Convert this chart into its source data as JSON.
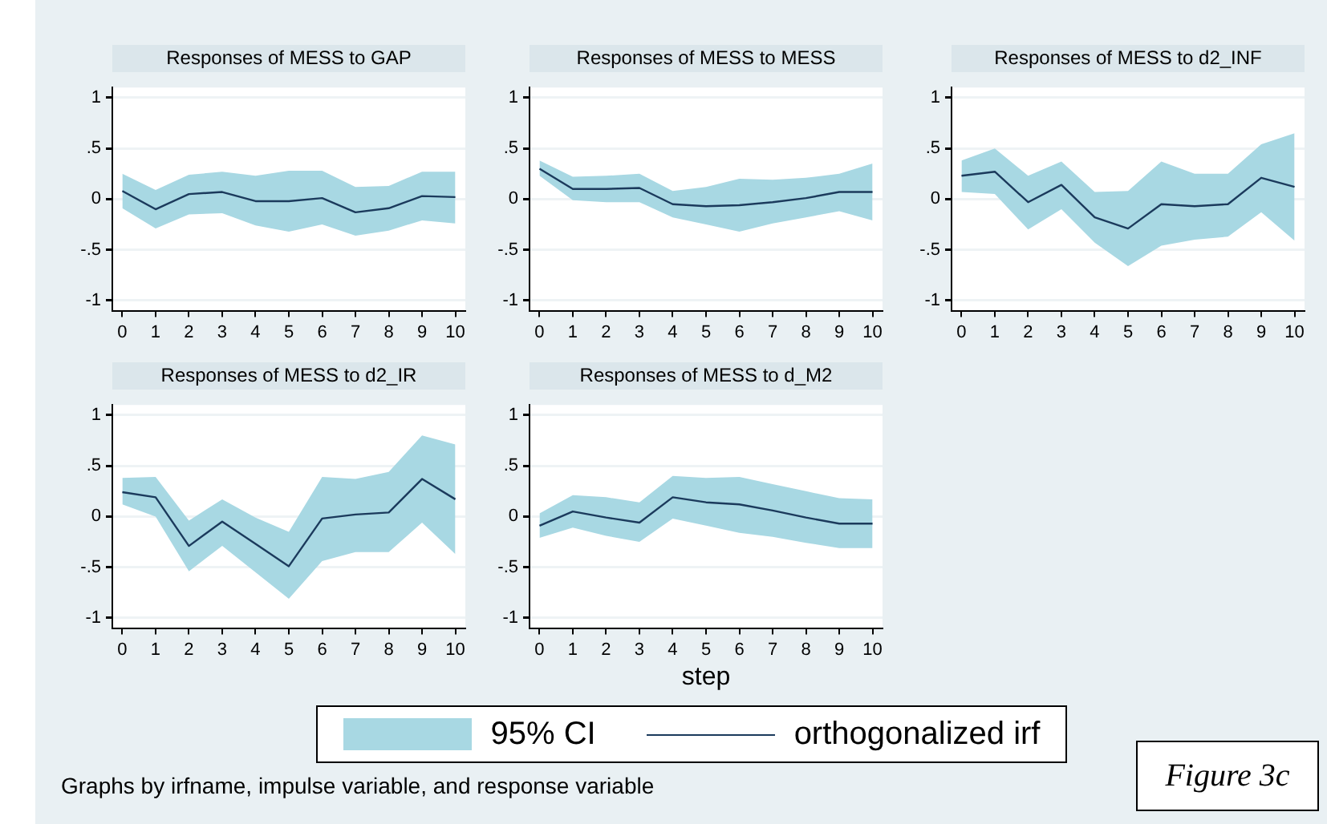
{
  "chart_data": [
    {
      "type": "line",
      "title": "Responses of MESS to GAP",
      "x": [
        0,
        1,
        2,
        3,
        4,
        5,
        6,
        7,
        8,
        9,
        10
      ],
      "xlim": [
        -0.3,
        10.3
      ],
      "xticks": [
        0,
        1,
        2,
        3,
        4,
        5,
        6,
        7,
        8,
        9,
        10
      ],
      "ylim": [
        -1.1,
        1.1
      ],
      "yticks": [
        {
          "value": -1,
          "label": "-1"
        },
        {
          "value": -0.5,
          "label": "-.5"
        },
        {
          "value": 0,
          "label": "0"
        },
        {
          "value": 0.5,
          "label": ".5"
        },
        {
          "value": 1,
          "label": "1"
        }
      ],
      "grid": "y",
      "legend": "bottom",
      "annotations": [
        "95% CI",
        "Graphs by irfname, impulse variable, and response variable",
        "Figure 3c"
      ],
      "series": [
        {
          "name": "orthogonalized irf",
          "color": "#1b3a5c",
          "values": [
            0.08,
            -0.1,
            0.05,
            0.07,
            -0.02,
            -0.02,
            0.01,
            -0.13,
            -0.09,
            0.03,
            0.02
          ],
          "lower": [
            -0.09,
            -0.29,
            -0.15,
            -0.14,
            -0.26,
            -0.32,
            -0.25,
            -0.36,
            -0.31,
            -0.21,
            -0.24
          ],
          "upper": [
            0.25,
            0.09,
            0.24,
            0.27,
            0.23,
            0.28,
            0.28,
            0.12,
            0.13,
            0.27,
            0.27
          ]
        }
      ]
    },
    {
      "type": "line",
      "title": "Responses of MESS to MESS",
      "x": [
        0,
        1,
        2,
        3,
        4,
        5,
        6,
        7,
        8,
        9,
        10
      ],
      "xlim": [
        -0.3,
        10.3
      ],
      "xticks": [
        0,
        1,
        2,
        3,
        4,
        5,
        6,
        7,
        8,
        9,
        10
      ],
      "ylim": [
        -1.1,
        1.1
      ],
      "yticks": [
        {
          "value": -1,
          "label": "-1"
        },
        {
          "value": -0.5,
          "label": "-.5"
        },
        {
          "value": 0,
          "label": "0"
        },
        {
          "value": 0.5,
          "label": ".5"
        },
        {
          "value": 1,
          "label": "1"
        }
      ],
      "grid": "y",
      "series": [
        {
          "color": "#1b3a5c",
          "values": [
            0.3,
            0.1,
            0.1,
            0.11,
            -0.05,
            -0.07,
            -0.06,
            -0.03,
            0.01,
            0.07,
            0.07
          ],
          "lower": [
            0.23,
            -0.01,
            -0.03,
            -0.03,
            -0.18,
            -0.25,
            -0.32,
            -0.24,
            -0.18,
            -0.12,
            -0.21
          ],
          "upper": [
            0.38,
            0.22,
            0.23,
            0.25,
            0.08,
            0.12,
            0.2,
            0.19,
            0.21,
            0.25,
            0.35
          ]
        }
      ]
    },
    {
      "type": "line",
      "title": "Responses of MESS to d2_INF",
      "x": [
        0,
        1,
        2,
        3,
        4,
        5,
        6,
        7,
        8,
        9,
        10
      ],
      "xlim": [
        -0.3,
        10.3
      ],
      "xticks": [
        0,
        1,
        2,
        3,
        4,
        5,
        6,
        7,
        8,
        9,
        10
      ],
      "ylim": [
        -1.1,
        1.1
      ],
      "yticks": [
        {
          "value": -1,
          "label": "-1"
        },
        {
          "value": -0.5,
          "label": "-.5"
        },
        {
          "value": 0,
          "label": "0"
        },
        {
          "value": 0.5,
          "label": ".5"
        },
        {
          "value": 1,
          "label": "1"
        }
      ],
      "grid": "y",
      "series": [
        {
          "color": "#1b3a5c",
          "values": [
            0.23,
            0.27,
            -0.03,
            0.14,
            -0.18,
            -0.29,
            -0.05,
            -0.07,
            -0.05,
            0.21,
            0.12
          ],
          "lower": [
            0.07,
            0.05,
            -0.3,
            -0.1,
            -0.43,
            -0.66,
            -0.46,
            -0.4,
            -0.37,
            -0.13,
            -0.41
          ],
          "upper": [
            0.38,
            0.5,
            0.23,
            0.37,
            0.07,
            0.08,
            0.37,
            0.25,
            0.25,
            0.54,
            0.65
          ]
        }
      ]
    },
    {
      "type": "line",
      "title": "Responses of MESS to d2_IR",
      "x": [
        0,
        1,
        2,
        3,
        4,
        5,
        6,
        7,
        8,
        9,
        10
      ],
      "xlim": [
        -0.3,
        10.3
      ],
      "xticks": [
        0,
        1,
        2,
        3,
        4,
        5,
        6,
        7,
        8,
        9,
        10
      ],
      "ylim": [
        -1.1,
        1.1
      ],
      "yticks": [
        {
          "value": -1,
          "label": "-1"
        },
        {
          "value": -0.5,
          "label": "-.5"
        },
        {
          "value": 0,
          "label": "0"
        },
        {
          "value": 0.5,
          "label": ".5"
        },
        {
          "value": 1,
          "label": "1"
        }
      ],
      "grid": "y",
      "series": [
        {
          "color": "#1b3a5c",
          "values": [
            0.24,
            0.19,
            -0.29,
            -0.05,
            -0.27,
            -0.49,
            -0.02,
            0.02,
            0.04,
            0.37,
            0.17
          ],
          "lower": [
            0.12,
            0.0,
            -0.54,
            -0.29,
            -0.55,
            -0.81,
            -0.44,
            -0.35,
            -0.35,
            -0.06,
            -0.37
          ],
          "upper": [
            0.38,
            0.39,
            -0.04,
            0.17,
            -0.01,
            -0.15,
            0.39,
            0.37,
            0.44,
            0.8,
            0.71
          ]
        }
      ]
    },
    {
      "type": "line",
      "title": "Responses of MESS to d_M2",
      "xlabel": "step",
      "x": [
        0,
        1,
        2,
        3,
        4,
        5,
        6,
        7,
        8,
        9,
        10
      ],
      "xlim": [
        -0.3,
        10.3
      ],
      "xticks": [
        0,
        1,
        2,
        3,
        4,
        5,
        6,
        7,
        8,
        9,
        10
      ],
      "ylim": [
        -1.1,
        1.1
      ],
      "yticks": [
        {
          "value": -1,
          "label": "-1"
        },
        {
          "value": -0.5,
          "label": "-.5"
        },
        {
          "value": 0,
          "label": "0"
        },
        {
          "value": 0.5,
          "label": ".5"
        },
        {
          "value": 1,
          "label": "1"
        }
      ],
      "grid": "y",
      "series": [
        {
          "color": "#1b3a5c",
          "values": [
            -0.09,
            0.05,
            -0.01,
            -0.06,
            0.19,
            0.14,
            0.12,
            0.06,
            -0.01,
            -0.07,
            -0.07
          ],
          "lower": [
            -0.21,
            -0.11,
            -0.19,
            -0.25,
            -0.02,
            -0.09,
            -0.16,
            -0.2,
            -0.26,
            -0.31,
            -0.31
          ],
          "upper": [
            0.03,
            0.21,
            0.19,
            0.14,
            0.4,
            0.38,
            0.39,
            0.32,
            0.25,
            0.18,
            0.17
          ]
        }
      ]
    }
  ]
}
